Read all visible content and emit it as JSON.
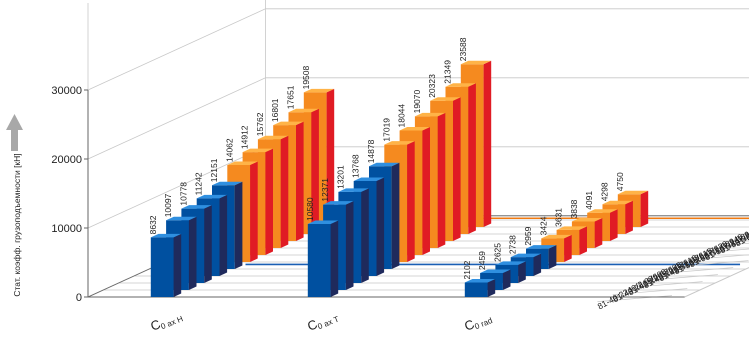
{
  "chart_data": {
    "type": "bar",
    "ylabel": "Стат. коэфф. грузоподъемности [кН]",
    "ylim": [
      0,
      30000
    ],
    "yticks": [
      0,
      10000,
      20000,
      30000
    ],
    "categories": [
      "C",
      "C",
      "C"
    ],
    "category_subscripts": [
      "0 ax H",
      "0 ax T",
      "0 rad"
    ],
    "grid": true,
    "series": [
      {
        "name": "81-40 2240/2-07600",
        "values": [
          8632,
          10580,
          2102
        ]
      },
      {
        "name": "81-40 2619/2-07605",
        "values": [
          10097,
          12371,
          2459
        ]
      },
      {
        "name": "81-40 2795/2-07610",
        "values": [
          10778,
          13201,
          2625
        ]
      },
      {
        "name": "81-40 2915/2-07615",
        "values": [
          11242,
          13768,
          2738
        ]
      },
      {
        "name": "81-40 3150/2-07620",
        "values": [
          12151,
          14878,
          2959
        ]
      },
      {
        "name": "81-50 2987/2-06940",
        "values": [
          14062,
          17019,
          3424
        ]
      },
      {
        "name": "81-50 3167/2-06945",
        "values": [
          14912,
          18044,
          3631
        ]
      },
      {
        "name": "81-50 3347/2-06950",
        "values": [
          15762,
          19070,
          3838
        ]
      },
      {
        "name": "81-50 3507/2-06955",
        "values": [
          16801,
          20323,
          4091
        ]
      },
      {
        "name": "81-50 3747/2-06960",
        "values": [
          17651,
          21349,
          4298
        ]
      },
      {
        "name": "81-50 4140/2-06965",
        "values": [
          19508,
          23588,
          4750
        ]
      }
    ],
    "colors": {
      "blue_front": "#0050a0",
      "blue_top": "#2f8fe0",
      "blue_side": "#1f2a5c",
      "orange_front": "#f58a1f",
      "orange_top": "#ffb347",
      "orange_side": "#e01b24",
      "grid": "#c8c8c8",
      "axis": "#666666",
      "arrow": "#a8a8a8",
      "orange_line": "#f07a10",
      "blue_line": "#1a5fb4"
    }
  }
}
